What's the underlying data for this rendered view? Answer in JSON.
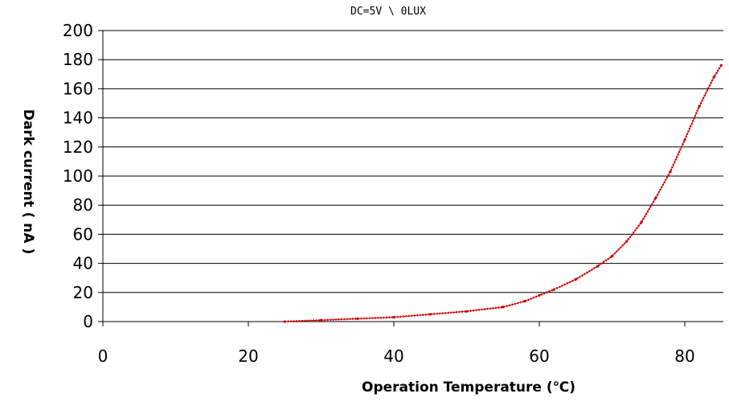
{
  "chart_data": {
    "type": "line",
    "title": "DC=5V \\ 0LUX",
    "xlabel": "Operation Temperature (℃)",
    "ylabel": "Dark current ( nA )",
    "xlim": [
      0,
      85
    ],
    "ylim": [
      0,
      200
    ],
    "x_ticks": [
      0,
      20,
      40,
      60,
      80
    ],
    "y_ticks": [
      0,
      20,
      40,
      60,
      80,
      100,
      120,
      140,
      160,
      180,
      200
    ],
    "grid": "horizontal",
    "legend": "none",
    "series": [
      {
        "color": "#cc0000",
        "x": [
          25,
          30,
          35,
          40,
          45,
          50,
          55,
          58,
          60,
          62,
          65,
          68,
          70,
          72,
          74,
          76,
          78,
          80,
          82,
          84,
          85
        ],
        "y": [
          0,
          1,
          2,
          3,
          5,
          7,
          10,
          14,
          18,
          22,
          29,
          38,
          45,
          55,
          68,
          85,
          103,
          125,
          148,
          168,
          176
        ]
      }
    ]
  }
}
